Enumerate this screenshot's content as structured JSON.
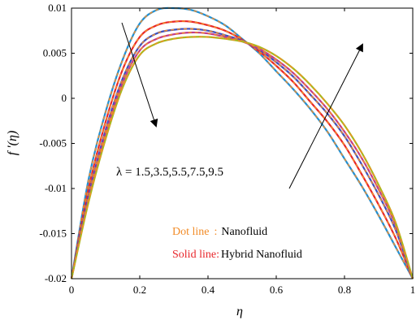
{
  "chart_data": {
    "type": "line",
    "title": "",
    "xlabel": "η",
    "ylabel": "f ′(η)",
    "xlim": [
      0,
      1
    ],
    "ylim": [
      -0.02,
      0.01
    ],
    "xticks": [
      "0",
      "0.2",
      "0.4",
      "0.6",
      "0.8",
      "1"
    ],
    "yticks": [
      "-0.02",
      "-0.015",
      "-0.01",
      "-0.005",
      "0",
      "0.005",
      "0.01"
    ],
    "grid": false,
    "annotation": "λ = 1.5,3.5,5.5,7.5,9.5",
    "legend": {
      "dot_key": "Dot line",
      "dot_sep": ":",
      "dot_value": "Nanofluid",
      "solid_key": "Solid line",
      "solid_sep": ":",
      "solid_value": "Hybrid Nanofluid",
      "dot_color": "#f28c28",
      "solid_color": "#e8252a"
    },
    "series": [
      {
        "color": "#1e90d6",
        "x": [
          0,
          0.05,
          0.1,
          0.15,
          0.2,
          0.25,
          0.3,
          0.35,
          0.4,
          0.45,
          0.5,
          0.55,
          0.6,
          0.65,
          0.7,
          0.75,
          0.8,
          0.85,
          0.9,
          0.95,
          1
        ],
        "y": [
          -0.02,
          -0.009,
          -0.0015,
          0.0043,
          0.0083,
          0.0098,
          0.01,
          0.0098,
          0.0091,
          0.0081,
          0.0066,
          0.005,
          0.003,
          0.001,
          -0.0012,
          -0.0037,
          -0.0067,
          -0.0097,
          -0.013,
          -0.0165,
          -0.02
        ]
      },
      {
        "color": "#e8252a",
        "x": [
          0,
          0.05,
          0.1,
          0.15,
          0.2,
          0.25,
          0.3,
          0.35,
          0.4,
          0.45,
          0.5,
          0.55,
          0.6,
          0.65,
          0.7,
          0.75,
          0.8,
          0.85,
          0.9,
          0.95,
          1
        ],
        "y": [
          -0.02,
          -0.01,
          -0.0026,
          0.0032,
          0.0068,
          0.0081,
          0.0085,
          0.0085,
          0.0081,
          0.0075,
          0.0065,
          0.0052,
          0.0036,
          0.0018,
          -0.0004,
          -0.0026,
          -0.0052,
          -0.0084,
          -0.0118,
          -0.0155,
          -0.02
        ]
      },
      {
        "color": "#3a4fc0",
        "x": [
          0,
          0.05,
          0.1,
          0.15,
          0.2,
          0.25,
          0.3,
          0.35,
          0.4,
          0.45,
          0.5,
          0.55,
          0.6,
          0.65,
          0.7,
          0.75,
          0.8,
          0.85,
          0.9,
          0.95,
          1
        ],
        "y": [
          -0.02,
          -0.0108,
          -0.0035,
          0.0022,
          0.0058,
          0.0072,
          0.0076,
          0.0077,
          0.0075,
          0.007,
          0.0064,
          0.0054,
          0.004,
          0.0024,
          0.0004,
          -0.0017,
          -0.0042,
          -0.0073,
          -0.0107,
          -0.0146,
          -0.02
        ]
      },
      {
        "color": "#c23a8c",
        "x": [
          0,
          0.05,
          0.1,
          0.15,
          0.2,
          0.25,
          0.3,
          0.35,
          0.4,
          0.45,
          0.5,
          0.55,
          0.6,
          0.65,
          0.7,
          0.75,
          0.8,
          0.85,
          0.9,
          0.95,
          1
        ],
        "y": [
          -0.02,
          -0.0112,
          -0.004,
          0.0017,
          0.0053,
          0.0066,
          0.0071,
          0.0073,
          0.0072,
          0.0068,
          0.0063,
          0.0055,
          0.0043,
          0.0028,
          0.0009,
          -0.0012,
          -0.0037,
          -0.0066,
          -0.0101,
          -0.0141,
          -0.02
        ]
      },
      {
        "color": "#a8b81c",
        "x": [
          0,
          0.05,
          0.1,
          0.15,
          0.2,
          0.25,
          0.3,
          0.35,
          0.4,
          0.45,
          0.5,
          0.55,
          0.6,
          0.65,
          0.7,
          0.75,
          0.8,
          0.85,
          0.9,
          0.95,
          1
        ],
        "y": [
          -0.02,
          -0.0115,
          -0.0045,
          0.0012,
          0.0048,
          0.0061,
          0.0066,
          0.0068,
          0.0068,
          0.0066,
          0.0063,
          0.0057,
          0.0047,
          0.0033,
          0.0015,
          -0.0006,
          -0.003,
          -0.006,
          -0.0096,
          -0.0138,
          -0.02
        ]
      }
    ]
  }
}
